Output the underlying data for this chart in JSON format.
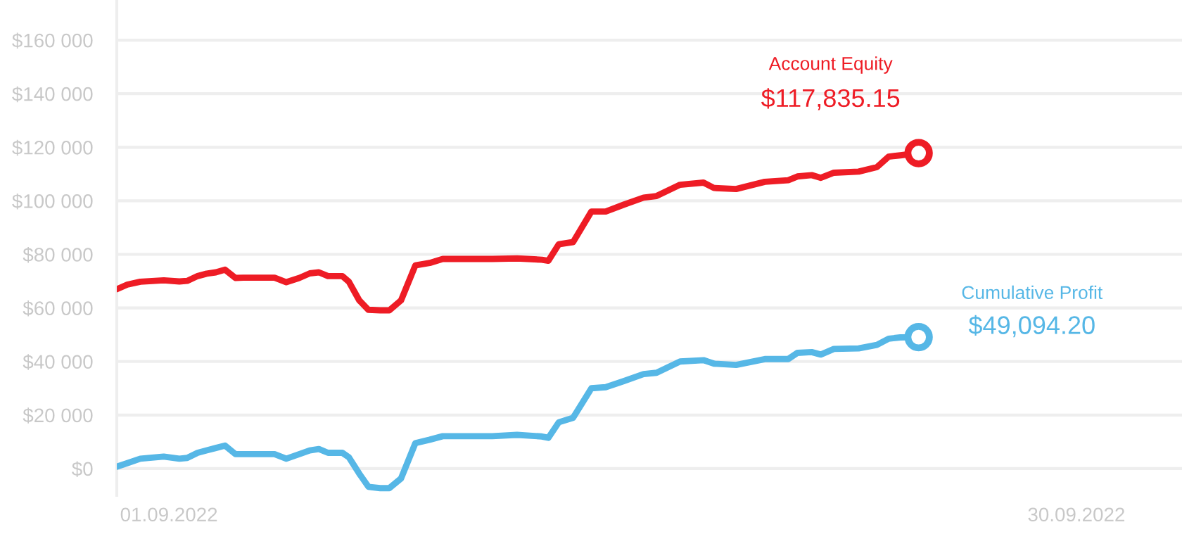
{
  "chart_data": {
    "type": "line",
    "x": [
      "2022-08-30T08:00",
      "2022-08-30T16:00",
      "2022-08-31T02:00",
      "2022-08-31T20:00",
      "2022-09-01T08:00",
      "2022-09-01T14:00",
      "2022-09-01T22:00",
      "2022-09-02T05:00",
      "2022-09-02T12:00",
      "2022-09-02T19:00",
      "2022-09-03T03:00",
      "2022-09-03T09:00",
      "2022-09-04T09:00",
      "2022-09-04T18:00",
      "2022-09-05T04:00",
      "2022-09-05T12:00",
      "2022-09-05T19:00",
      "2022-09-06T02:00",
      "2022-09-06T13:00",
      "2022-09-06T18:00",
      "2022-09-07T02:00",
      "2022-09-07T09:00",
      "2022-09-07T18:00",
      "2022-09-08T01:00",
      "2022-09-08T10:00",
      "2022-09-08T21:00",
      "2022-09-09T08:00",
      "2022-09-09T18:00",
      "2022-09-11T08:00",
      "2022-09-12T03:00",
      "2022-09-12T22:00",
      "2022-09-13T03:00",
      "2022-09-13T11:00",
      "2022-09-13T22:00",
      "2022-09-14T12:00",
      "2022-09-14T23:00",
      "2022-09-15T13:00",
      "2022-09-16T04:00",
      "2022-09-16T14:00",
      "2022-09-17T08:00",
      "2022-09-18T02:00",
      "2022-09-18T10:00",
      "2022-09-19T03:00",
      "2022-09-20T01:00",
      "2022-09-20T19:00",
      "2022-09-21T02:00",
      "2022-09-21T13:00",
      "2022-09-21T20:00",
      "2022-09-22T06:00",
      "2022-09-23T01:00",
      "2022-09-23T15:00",
      "2022-09-24T00:00",
      "2022-09-24T09:00",
      "2022-09-24T23:00"
    ],
    "series": [
      {
        "name": "Account Equity",
        "color": "#ee1c25",
        "values": [
          67000,
          68700,
          69800,
          70300,
          69900,
          70100,
          71900,
          72800,
          73300,
          74300,
          71200,
          71300,
          71300,
          69600,
          71200,
          72900,
          73300,
          71900,
          71900,
          69800,
          62800,
          59300,
          59100,
          59100,
          62800,
          75900,
          76800,
          78300,
          78300,
          78500,
          78000,
          77600,
          83800,
          84600,
          96000,
          96000,
          98600,
          101200,
          101800,
          106000,
          106800,
          104800,
          104400,
          107100,
          107700,
          109100,
          109600,
          108600,
          110500,
          110900,
          112600,
          116500,
          117000,
          117835.15
        ],
        "value_labels": [
          null,
          null,
          null,
          null,
          null,
          null,
          null,
          null,
          null,
          null,
          null,
          null,
          null,
          null,
          null,
          null,
          null,
          null,
          null,
          null,
          null,
          null,
          null,
          null,
          null,
          null,
          null,
          null,
          null,
          null,
          null,
          null,
          null,
          null,
          null,
          null,
          null,
          null,
          null,
          null,
          null,
          null,
          null,
          null,
          null,
          null,
          null,
          null,
          null,
          null,
          null,
          null,
          null,
          "$117,835.15"
        ]
      },
      {
        "name": "Cumulative Profit",
        "color": "#56b7e6",
        "values": [
          700,
          2000,
          3700,
          4500,
          3700,
          4000,
          5900,
          6800,
          7700,
          8600,
          5400,
          5400,
          5400,
          3700,
          5400,
          6800,
          7300,
          5900,
          5900,
          4200,
          -1900,
          -6800,
          -7300,
          -7300,
          -3700,
          9500,
          10800,
          12100,
          12100,
          12600,
          12000,
          11500,
          17300,
          19000,
          30000,
          30400,
          32700,
          35300,
          35800,
          40000,
          40500,
          39200,
          38700,
          40900,
          40900,
          43200,
          43500,
          42600,
          44700,
          44900,
          46200,
          48500,
          49000,
          49094.2
        ],
        "value_labels": [
          null,
          null,
          null,
          null,
          null,
          null,
          null,
          null,
          null,
          null,
          null,
          null,
          null,
          null,
          null,
          null,
          null,
          null,
          null,
          null,
          null,
          null,
          null,
          null,
          null,
          null,
          null,
          null,
          null,
          null,
          null,
          null,
          null,
          null,
          null,
          null,
          null,
          null,
          null,
          null,
          null,
          null,
          null,
          null,
          null,
          null,
          null,
          null,
          null,
          null,
          null,
          null,
          null,
          "$49,094.20"
        ]
      }
    ],
    "xlim": [
      "2022-08-30T08:00",
      "2022-10-03T09:00"
    ],
    "xticks": [
      {
        "value": "2022-09-01",
        "label": "01.09.2022"
      },
      {
        "value": "2022-09-30",
        "label": "30.09.2022"
      }
    ],
    "ylim": [
      -10000,
      175000
    ],
    "yticks": [
      {
        "value": 0,
        "label": "$0"
      },
      {
        "value": 20000,
        "label": "$20 000"
      },
      {
        "value": 40000,
        "label": "$40 000"
      },
      {
        "value": 60000,
        "label": "$60 000"
      },
      {
        "value": 80000,
        "label": "$80 000"
      },
      {
        "value": 100000,
        "label": "$100 000"
      },
      {
        "value": 120000,
        "label": "$120 000"
      },
      {
        "value": 140000,
        "label": "$140 000"
      },
      {
        "value": 160000,
        "label": "$160 000"
      }
    ],
    "grid": "y",
    "line_style": "solid"
  }
}
